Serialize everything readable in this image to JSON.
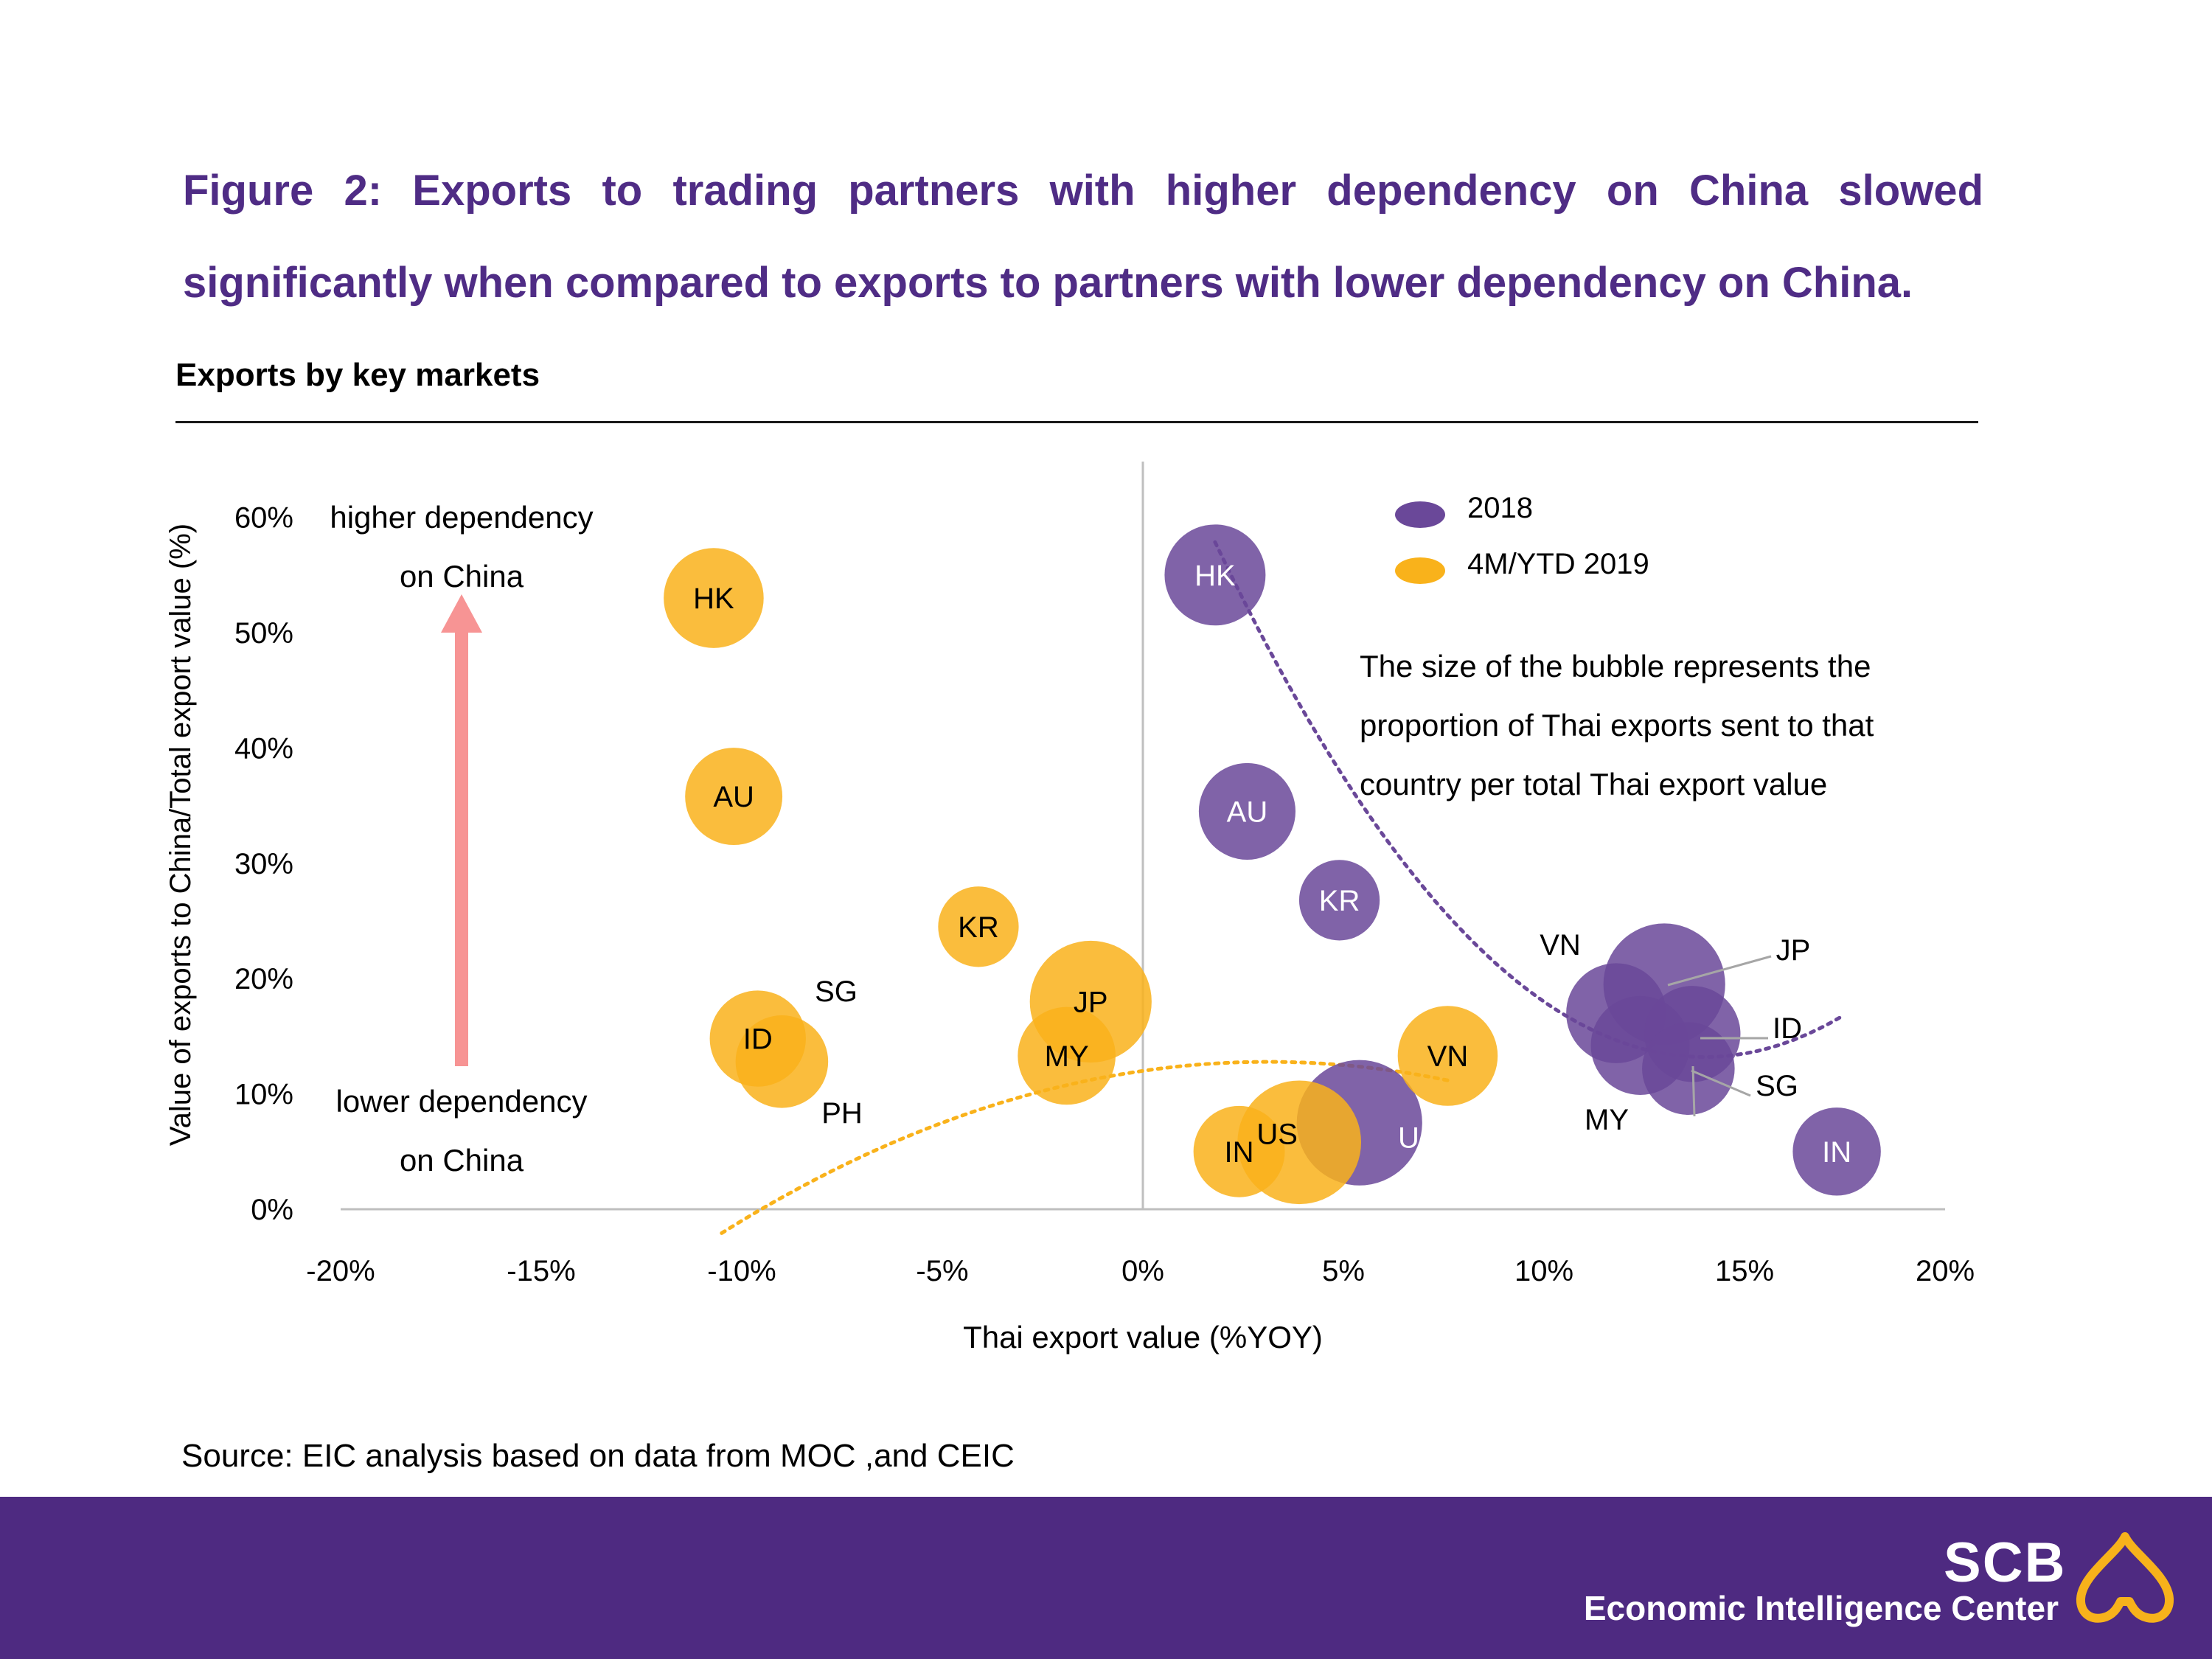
{
  "figure": {
    "title_line1": "Figure 2: Exports to trading partners with higher dependency on China slowed",
    "title_line2": "significantly when compared to exports to partners with lower dependency on China."
  },
  "chart_title": "Exports by key markets",
  "source": "Source: EIC analysis based on data from MOC ,and CEIC",
  "brand": {
    "name": "SCB",
    "subtitle": "Economic Intelligence Center"
  },
  "colors": {
    "series_2018": "#6a4899",
    "series_2019": "#f9b21b",
    "arrow": "#f79494",
    "title": "#4f2c85",
    "footer": "#4e2a81"
  },
  "chart_data": {
    "type": "scatter",
    "xlabel": "Thai export value (%YOY)",
    "ylabel": "Value of exports to China/Total export value (%)",
    "xlim": [
      -20,
      20
    ],
    "ylim": [
      0,
      65
    ],
    "x_ticks": [
      {
        "value": -20,
        "label": "-20%"
      },
      {
        "value": -15,
        "label": "-15%"
      },
      {
        "value": -10,
        "label": "-10%"
      },
      {
        "value": -5,
        "label": "-5%"
      },
      {
        "value": 0,
        "label": "0%"
      },
      {
        "value": 5,
        "label": "5%"
      },
      {
        "value": 10,
        "label": "10%"
      },
      {
        "value": 15,
        "label": "15%"
      },
      {
        "value": 20,
        "label": "20%"
      }
    ],
    "y_ticks": [
      {
        "value": 0,
        "label": "0%"
      },
      {
        "value": 10,
        "label": "10%"
      },
      {
        "value": 20,
        "label": "20%"
      },
      {
        "value": 30,
        "label": "30%"
      },
      {
        "value": 40,
        "label": "40%"
      },
      {
        "value": 50,
        "label": "50%"
      },
      {
        "value": 60,
        "label": "60%"
      }
    ],
    "legend": {
      "placement": "top-right",
      "entries": [
        {
          "label": "2018",
          "color": "#6a4899"
        },
        {
          "label": "4M/YTD 2019",
          "color": "#f9b21b"
        }
      ]
    },
    "series": [
      {
        "name": "4M/YTD 2019",
        "color": "#f9b21b",
        "points": [
          {
            "label": "US",
            "x": 3.9,
            "y": 5.8,
            "size": 10.5
          },
          {
            "label": "JP",
            "x": -1.3,
            "y": 18.0,
            "size": 10.0
          },
          {
            "label": "HK",
            "x": -10.7,
            "y": 53.0,
            "size": 5.0
          },
          {
            "label": "AU",
            "x": -10.2,
            "y": 35.8,
            "size": 4.5
          },
          {
            "label": "VN",
            "x": 7.6,
            "y": 13.3,
            "size": 5.0
          },
          {
            "label": "MY",
            "x": -1.9,
            "y": 13.3,
            "size": 4.6
          },
          {
            "label": "ID",
            "x": -9.6,
            "y": 14.8,
            "size": 4.3
          },
          {
            "label": "IN",
            "x": 2.4,
            "y": 5.0,
            "size": 3.5
          },
          {
            "label": "PH",
            "x": -9.0,
            "y": 12.8,
            "size": 3.7
          },
          {
            "label": "KR",
            "x": -4.1,
            "y": 24.5,
            "size": 2.0
          }
        ]
      },
      {
        "name": "2018",
        "color": "#6a4899",
        "points": [
          {
            "label": "US",
            "x": 5.4,
            "y": 7.5,
            "size": 11.0
          },
          {
            "label": "JP",
            "x": 13.0,
            "y": 19.5,
            "size": 10.0
          },
          {
            "label": "HK",
            "x": 1.8,
            "y": 55.0,
            "size": 5.2
          },
          {
            "label": "AU",
            "x": 2.6,
            "y": 34.5,
            "size": 4.4
          },
          {
            "label": "VN",
            "x": 11.8,
            "y": 17.0,
            "size": 5.0
          },
          {
            "label": "MY",
            "x": 12.4,
            "y": 14.2,
            "size": 4.8
          },
          {
            "label": "ID",
            "x": 13.7,
            "y": 15.2,
            "size": 4.3
          },
          {
            "label": "SG",
            "x": 13.6,
            "y": 12.2,
            "size": 3.7
          },
          {
            "label": "IN",
            "x": 17.3,
            "y": 5.0,
            "size": 3.0
          },
          {
            "label": "KR",
            "x": 4.9,
            "y": 26.8,
            "size": 2.0
          }
        ]
      }
    ],
    "trendlines": [
      {
        "series": "4M/YTD 2019",
        "x_range": [
          -10.5,
          7.6
        ],
        "a": -0.08,
        "b": 0.5,
        "c": 12
      },
      {
        "series": "2018",
        "x_range": [
          1.8,
          17.4
        ],
        "a": 0.3,
        "b": -8.4,
        "c": 72
      }
    ],
    "annotations": {
      "note": [
        "The size of the bubble represents the",
        "proportion of Thai exports sent to that",
        "country per total Thai export value"
      ],
      "higher_dependency": [
        "higher dependency",
        "on China"
      ],
      "lower_dependency": [
        "lower dependency",
        "on China"
      ]
    }
  }
}
